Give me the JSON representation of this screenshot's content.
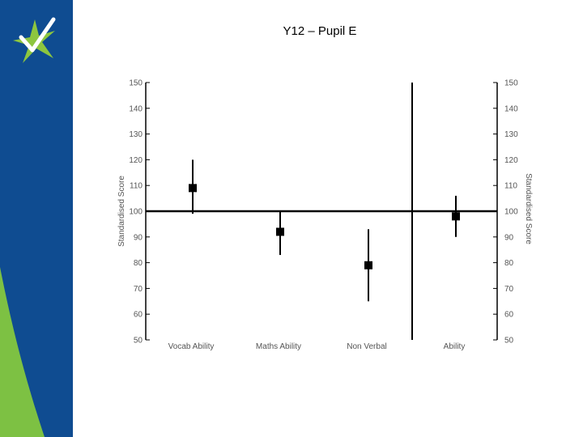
{
  "page": {
    "title": "Y12 – Pupil E"
  },
  "colors": {
    "sidebar": "#0f4c91",
    "sidebar_wave": "#7dc143",
    "logo_star": "#8dc63f",
    "logo_check": "#ffffff"
  },
  "chart_data": {
    "type": "errorbar",
    "title": "Y12 – Pupil E",
    "ylabel_left": "Standardised Score",
    "ylabel_right": "Standardised Score",
    "ylim": [
      50,
      150
    ],
    "yticks": [
      50,
      60,
      70,
      80,
      90,
      100,
      110,
      120,
      130,
      140,
      150
    ],
    "reference_line": 100,
    "categories": [
      "Vocab Ability",
      "Maths Ability",
      "Non Verbal",
      "Ability"
    ],
    "values": [
      109,
      92,
      79,
      98
    ],
    "lower": [
      99,
      83,
      65,
      90
    ],
    "upper": [
      120,
      100,
      93,
      106
    ],
    "separator_after_index": 2
  }
}
